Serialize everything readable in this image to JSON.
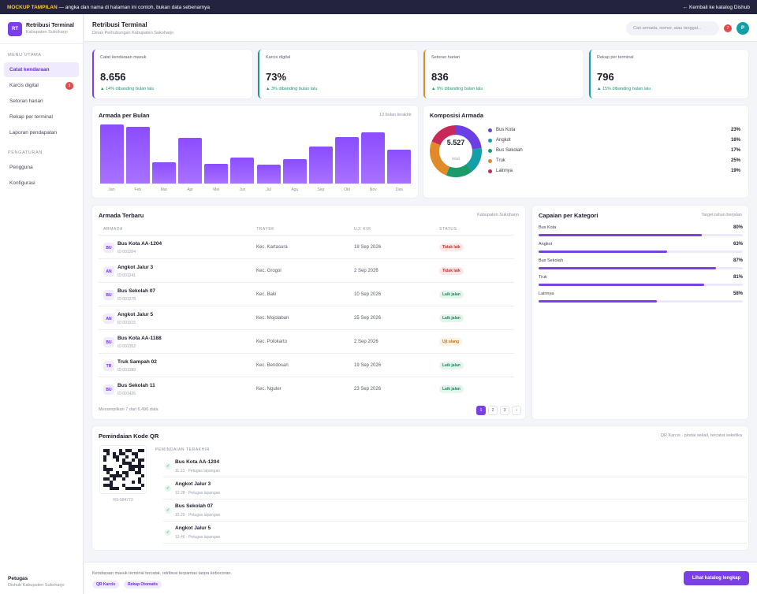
{
  "banner": {
    "tag": "MOCKUP TAMPILAN",
    "text": "— angka dan nama di halaman ini contoh, bukan data sebenarnya",
    "back": "← Kembali ke katalog Dishub"
  },
  "brand": {
    "logo": "RT",
    "title": "Retribusi Terminal",
    "subtitle": "Kabupaten Sukoharjo"
  },
  "sidebar": {
    "section1": "MENU UTAMA",
    "items": [
      {
        "label": "Catat kendaraan"
      },
      {
        "label": "Karcis digital",
        "badge": "5"
      },
      {
        "label": "Setoran harian"
      },
      {
        "label": "Rekap per terminal"
      },
      {
        "label": "Laporan pendapatan"
      }
    ],
    "section2": "PENGATURAN",
    "items2": [
      {
        "label": "Pengguna"
      },
      {
        "label": "Konfigurasi"
      }
    ],
    "user": {
      "name": "Petugas",
      "org": "Dishub Kabupaten Sukoharjo"
    }
  },
  "header": {
    "title": "Retribusi Terminal",
    "subtitle": "Dinas Perhubungan Kabupaten Sukoharjo",
    "search_placeholder": "Cari armada, nomor, atau tanggal...",
    "notif_count": "7",
    "avatar": "P"
  },
  "kpis": [
    {
      "label": "Catat kendaraan masuk",
      "value": "8.656",
      "compare": "▲ 14% dibanding bulan lalu",
      "color": "#7a3fe6"
    },
    {
      "label": "Karcis digital",
      "value": "73%",
      "compare": "▲ 3% dibanding bulan lalu",
      "color": "#1b9a8a"
    },
    {
      "label": "Setoran harian",
      "value": "836",
      "compare": "▲ 9% dibanding bulan lalu",
      "color": "#e08a2a"
    },
    {
      "label": "Rekap per terminal",
      "value": "796",
      "compare": "▲ 15% dibanding bulan lalu",
      "color": "#12a0a8"
    }
  ],
  "armada_bulan": {
    "title": "Armada per Bulan",
    "note": "12 bulan terakhir"
  },
  "chart_data": {
    "type": "bar",
    "categories": [
      "Jan",
      "Feb",
      "Mar",
      "Apr",
      "Mei",
      "Jun",
      "Jul",
      "Agu",
      "Sep",
      "Okt",
      "Nov",
      "Des"
    ],
    "values": [
      100,
      96,
      36,
      78,
      33,
      44,
      32,
      42,
      63,
      79,
      87,
      57
    ],
    "ylim": [
      0,
      100
    ]
  },
  "komposisi": {
    "title": "Komposisi Armada",
    "total": "5.527",
    "total_label": "total",
    "items": [
      {
        "name": "Bus Kota",
        "value": "23%",
        "pct": 23,
        "color": "#6c3fe6"
      },
      {
        "name": "Angkot",
        "value": "16%",
        "pct": 16,
        "color": "#12a0a8"
      },
      {
        "name": "Bus Sekolah",
        "value": "17%",
        "pct": 17,
        "color": "#1b9a6a"
      },
      {
        "name": "Truk",
        "value": "25%",
        "pct": 25,
        "color": "#e08a2a"
      },
      {
        "name": "Lainnya",
        "value": "19%",
        "pct": 19,
        "color": "#c8285a"
      }
    ]
  },
  "armada_terbaru": {
    "title": "Armada Terbaru",
    "note": "Kabupaten Sukoharjo",
    "headers": [
      "ARMADA",
      "TRAYEK",
      "UJI KIR",
      "STATUS"
    ],
    "rows": [
      {
        "abbr": "BU",
        "name": "Bus Kota AA-1204",
        "id": "ID 001204",
        "trayek": "Kec. Kartasura",
        "kir": "18 Sep 2026",
        "status": "Tidak laik"
      },
      {
        "abbr": "AN",
        "name": "Angkot Jalur 3",
        "id": "ID 001241",
        "trayek": "Kec. Grogol",
        "kir": "2 Sep 2026",
        "status": "Tidak laik"
      },
      {
        "abbr": "BU",
        "name": "Bus Sekolah 07",
        "id": "ID 001278",
        "trayek": "Kec. Baki",
        "kir": "10 Sep 2026",
        "status": "Laik jalan"
      },
      {
        "abbr": "AN",
        "name": "Angkot Jalur 5",
        "id": "ID 001315",
        "trayek": "Kec. Mojolaban",
        "kir": "25 Sep 2026",
        "status": "Laik jalan"
      },
      {
        "abbr": "BU",
        "name": "Bus Kota AA-1188",
        "id": "ID 001352",
        "trayek": "Kec. Polokarto",
        "kir": "2 Sep 2026",
        "status": "Uji ulang"
      },
      {
        "abbr": "TR",
        "name": "Truk Sampah 02",
        "id": "ID 001389",
        "trayek": "Kec. Bendosari",
        "kir": "19 Sep 2026",
        "status": "Laik jalan"
      },
      {
        "abbr": "BU",
        "name": "Bus Sekolah 11",
        "id": "ID 001426",
        "trayek": "Kec. Nguter",
        "kir": "23 Sep 2026",
        "status": "Laik jalan"
      }
    ],
    "footer": "Menampilkan 7 dari 6.496 data",
    "pages": [
      "1",
      "2",
      "3",
      "›"
    ]
  },
  "capaian": {
    "title": "Capaian per Kategori",
    "note": "Target tahun berjalan",
    "items": [
      {
        "name": "Bus Kota",
        "value": "80%",
        "pct": 80
      },
      {
        "name": "Angkot",
        "value": "63%",
        "pct": 63
      },
      {
        "name": "Bus Sekolah",
        "value": "87%",
        "pct": 87
      },
      {
        "name": "Truk",
        "value": "81%",
        "pct": 81
      },
      {
        "name": "Lainnya",
        "value": "58%",
        "pct": 58
      }
    ]
  },
  "qr": {
    "title": "Pemindaian Kode QR",
    "note": "QR Karcis · pindai sekali, tercatat seketika",
    "code": "RS-584773",
    "section": "PEMINDAIAN TERAKHIR",
    "scans": [
      {
        "name": "Bus Kota AA-1204",
        "meta": "11.13 · Petugas lapangan"
      },
      {
        "name": "Angkot Jalur 3",
        "meta": "12.28 · Petugas lapangan"
      },
      {
        "name": "Bus Sekolah 07",
        "meta": "15.29 · Petugas lapangan"
      },
      {
        "name": "Angkot Jalur 5",
        "meta": "13.46 · Petugas lapangan"
      }
    ]
  },
  "footer": {
    "text": "Kendaraan masuk terminal tercatat, retribusi terpantau tanpa kebocoran.",
    "chip1": "QR Karcis",
    "chip2": "Rekap Otomatis",
    "cta": "Lihat katalog lengkap"
  }
}
